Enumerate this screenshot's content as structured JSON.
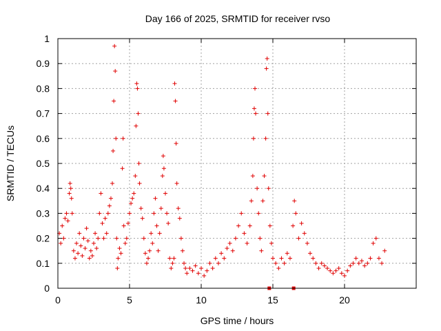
{
  "chart_data": {
    "type": "scatter",
    "title": "Day 166 of 2025, SRMTID for receiver rvso",
    "xlabel": "GPS time / hours",
    "ylabel": "SRMTID / TECUs",
    "xlim": [
      0,
      25
    ],
    "ylim": [
      0,
      1
    ],
    "xticks": [
      0,
      5,
      10,
      15,
      20
    ],
    "yticks": [
      0,
      0.1,
      0.2,
      0.3,
      0.4,
      0.5,
      0.6,
      0.7,
      0.8,
      0.9,
      1
    ],
    "ytick_labels": [
      "0",
      "0.1",
      "0.2",
      "0.3",
      "0.4",
      "0.5",
      "0.6",
      "0.7",
      "0.8",
      "0.9",
      "1"
    ],
    "grid": true,
    "marker": "plus",
    "color": "#e00000",
    "series": [
      {
        "name": "SRMTID",
        "points": [
          [
            0.1,
            0.22
          ],
          [
            0.2,
            0.18
          ],
          [
            0.3,
            0.25
          ],
          [
            0.4,
            0.2
          ],
          [
            0.5,
            0.28
          ],
          [
            0.6,
            0.3
          ],
          [
            0.7,
            0.27
          ],
          [
            0.8,
            0.38
          ],
          [
            0.85,
            0.42
          ],
          [
            0.9,
            0.4
          ],
          [
            0.95,
            0.36
          ],
          [
            1.0,
            0.3
          ],
          [
            1.1,
            0.15
          ],
          [
            1.2,
            0.12
          ],
          [
            1.3,
            0.18
          ],
          [
            1.4,
            0.14
          ],
          [
            1.5,
            0.22
          ],
          [
            1.6,
            0.17
          ],
          [
            1.7,
            0.13
          ],
          [
            1.8,
            0.2
          ],
          [
            1.9,
            0.16
          ],
          [
            2.0,
            0.24
          ],
          [
            2.1,
            0.19
          ],
          [
            2.2,
            0.12
          ],
          [
            2.3,
            0.15
          ],
          [
            2.4,
            0.13
          ],
          [
            2.5,
            0.18
          ],
          [
            2.6,
            0.22
          ],
          [
            2.7,
            0.16
          ],
          [
            2.8,
            0.2
          ],
          [
            2.9,
            0.3
          ],
          [
            3.0,
            0.38
          ],
          [
            3.1,
            0.26
          ],
          [
            3.2,
            0.2
          ],
          [
            3.3,
            0.28
          ],
          [
            3.4,
            0.22
          ],
          [
            3.5,
            0.3
          ],
          [
            3.6,
            0.33
          ],
          [
            3.7,
            0.36
          ],
          [
            3.8,
            0.42
          ],
          [
            3.85,
            0.55
          ],
          [
            3.9,
            0.75
          ],
          [
            3.95,
            0.97
          ],
          [
            4.0,
            0.87
          ],
          [
            4.05,
            0.6
          ],
          [
            4.1,
            0.2
          ],
          [
            4.15,
            0.08
          ],
          [
            4.2,
            0.12
          ],
          [
            4.3,
            0.16
          ],
          [
            4.4,
            0.14
          ],
          [
            4.5,
            0.48
          ],
          [
            4.55,
            0.6
          ],
          [
            4.6,
            0.25
          ],
          [
            4.7,
            0.18
          ],
          [
            4.8,
            0.2
          ],
          [
            4.9,
            0.26
          ],
          [
            5.0,
            0.3
          ],
          [
            5.1,
            0.34
          ],
          [
            5.2,
            0.36
          ],
          [
            5.3,
            0.38
          ],
          [
            5.4,
            0.45
          ],
          [
            5.45,
            0.65
          ],
          [
            5.5,
            0.82
          ],
          [
            5.55,
            0.8
          ],
          [
            5.6,
            0.7
          ],
          [
            5.65,
            0.5
          ],
          [
            5.7,
            0.42
          ],
          [
            5.8,
            0.32
          ],
          [
            5.9,
            0.28
          ],
          [
            6.0,
            0.2
          ],
          [
            6.1,
            0.14
          ],
          [
            6.2,
            0.1
          ],
          [
            6.3,
            0.12
          ],
          [
            6.4,
            0.15
          ],
          [
            6.5,
            0.22
          ],
          [
            6.6,
            0.18
          ],
          [
            6.7,
            0.3
          ],
          [
            6.8,
            0.36
          ],
          [
            6.9,
            0.25
          ],
          [
            7.0,
            0.15
          ],
          [
            7.1,
            0.22
          ],
          [
            7.2,
            0.32
          ],
          [
            7.3,
            0.45
          ],
          [
            7.35,
            0.53
          ],
          [
            7.4,
            0.48
          ],
          [
            7.5,
            0.38
          ],
          [
            7.6,
            0.3
          ],
          [
            7.7,
            0.26
          ],
          [
            7.8,
            0.12
          ],
          [
            7.9,
            0.08
          ],
          [
            8.0,
            0.1
          ],
          [
            8.1,
            0.12
          ],
          [
            8.15,
            0.82
          ],
          [
            8.2,
            0.75
          ],
          [
            8.25,
            0.58
          ],
          [
            8.3,
            0.42
          ],
          [
            8.4,
            0.32
          ],
          [
            8.5,
            0.28
          ],
          [
            8.6,
            0.2
          ],
          [
            8.7,
            0.15
          ],
          [
            8.8,
            0.1
          ],
          [
            8.9,
            0.08
          ],
          [
            9.0,
            0.06
          ],
          [
            9.2,
            0.08
          ],
          [
            9.4,
            0.07
          ],
          [
            9.6,
            0.09
          ],
          [
            9.8,
            0.06
          ],
          [
            10.0,
            0.08
          ],
          [
            10.2,
            0.05
          ],
          [
            10.4,
            0.07
          ],
          [
            10.6,
            0.1
          ],
          [
            10.8,
            0.08
          ],
          [
            11.0,
            0.12
          ],
          [
            11.2,
            0.1
          ],
          [
            11.4,
            0.14
          ],
          [
            11.6,
            0.12
          ],
          [
            11.8,
            0.16
          ],
          [
            12.0,
            0.18
          ],
          [
            12.2,
            0.15
          ],
          [
            12.4,
            0.2
          ],
          [
            12.6,
            0.25
          ],
          [
            12.8,
            0.3
          ],
          [
            13.0,
            0.22
          ],
          [
            13.2,
            0.18
          ],
          [
            13.4,
            0.25
          ],
          [
            13.5,
            0.35
          ],
          [
            13.6,
            0.45
          ],
          [
            13.65,
            0.6
          ],
          [
            13.7,
            0.72
          ],
          [
            13.75,
            0.8
          ],
          [
            13.8,
            0.7
          ],
          [
            13.9,
            0.4
          ],
          [
            14.0,
            0.3
          ],
          [
            14.1,
            0.2
          ],
          [
            14.2,
            0.15
          ],
          [
            14.3,
            0.35
          ],
          [
            14.4,
            0.45
          ],
          [
            14.5,
            0.6
          ],
          [
            14.55,
            0.88
          ],
          [
            14.6,
            0.92
          ],
          [
            14.65,
            0.7
          ],
          [
            14.7,
            0.4
          ],
          [
            14.8,
            0.25
          ],
          [
            14.9,
            0.18
          ],
          [
            15.0,
            0.12
          ],
          [
            15.2,
            0.1
          ],
          [
            15.4,
            0.08
          ],
          [
            15.6,
            0.12
          ],
          [
            15.8,
            0.1
          ],
          [
            16.0,
            0.14
          ],
          [
            16.2,
            0.12
          ],
          [
            16.4,
            0.25
          ],
          [
            16.5,
            0.35
          ],
          [
            16.6,
            0.3
          ],
          [
            16.8,
            0.2
          ],
          [
            17.0,
            0.26
          ],
          [
            17.2,
            0.22
          ],
          [
            17.4,
            0.18
          ],
          [
            17.6,
            0.14
          ],
          [
            17.8,
            0.12
          ],
          [
            18.0,
            0.1
          ],
          [
            18.2,
            0.08
          ],
          [
            18.4,
            0.1
          ],
          [
            18.6,
            0.09
          ],
          [
            18.8,
            0.08
          ],
          [
            19.0,
            0.07
          ],
          [
            19.2,
            0.06
          ],
          [
            19.4,
            0.07
          ],
          [
            19.6,
            0.08
          ],
          [
            19.8,
            0.06
          ],
          [
            20.0,
            0.05
          ],
          [
            20.2,
            0.07
          ],
          [
            20.4,
            0.09
          ],
          [
            20.6,
            0.1
          ],
          [
            20.8,
            0.12
          ],
          [
            21.0,
            0.1
          ],
          [
            21.2,
            0.11
          ],
          [
            21.4,
            0.09
          ],
          [
            21.6,
            0.1
          ],
          [
            21.8,
            0.12
          ],
          [
            22.0,
            0.18
          ],
          [
            22.2,
            0.2
          ],
          [
            22.4,
            0.12
          ],
          [
            22.6,
            0.1
          ],
          [
            22.8,
            0.15
          ]
        ]
      }
    ],
    "axis_markers": [
      14.75,
      16.45
    ]
  }
}
